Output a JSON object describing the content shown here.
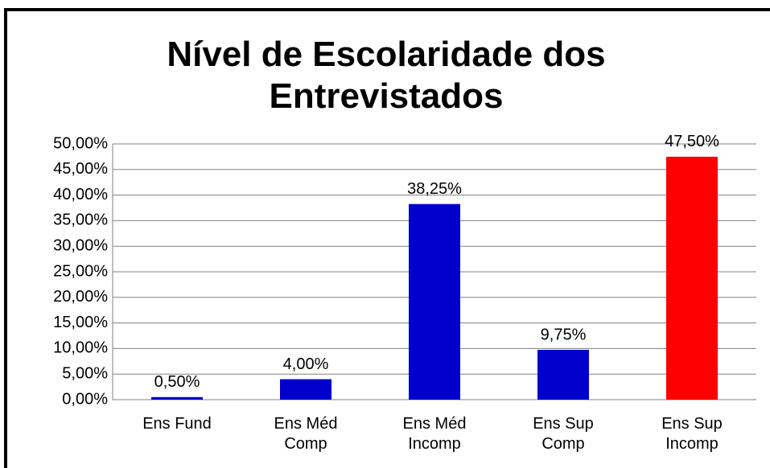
{
  "chart_data": {
    "type": "bar",
    "title": "Nível de Escolaridade dos Entrevistados",
    "categories": [
      "Ens Fund",
      "Ens Méd Comp",
      "Ens Méd Incomp",
      "Ens Sup Comp",
      "Ens Sup Incomp"
    ],
    "values": [
      0.5,
      4,
      38.25,
      9.75,
      47.5
    ],
    "value_labels": [
      "0,50%",
      "4,00%",
      "38,25%",
      "9,75%",
      "47,50%"
    ],
    "colors": [
      "#0000cc",
      "#0000cc",
      "#0000cc",
      "#0000cc",
      "#ff0000"
    ],
    "ylim": [
      0,
      50
    ],
    "yticks": [
      {
        "value": 0,
        "label": "0,00%"
      },
      {
        "value": 5,
        "label": "5,00%"
      },
      {
        "value": 10,
        "label": "10,00%"
      },
      {
        "value": 15,
        "label": "15,00%"
      },
      {
        "value": 20,
        "label": "20,00%"
      },
      {
        "value": 25,
        "label": "25,00%"
      },
      {
        "value": 30,
        "label": "30,00%"
      },
      {
        "value": 35,
        "label": "35,00%"
      },
      {
        "value": 40,
        "label": "40,00%"
      },
      {
        "value": 45,
        "label": "45,00%"
      },
      {
        "value": 50,
        "label": "50,00%"
      }
    ],
    "grid": true
  }
}
